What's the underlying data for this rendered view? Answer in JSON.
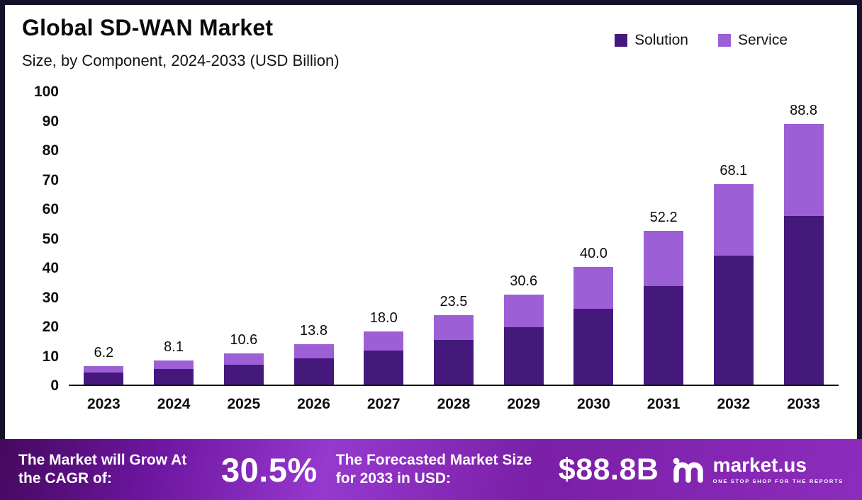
{
  "chart_data": {
    "type": "bar",
    "stacked": true,
    "title": "Global SD-WAN Market",
    "subtitle": "Size, by Component, 2024-2033 (USD Billion)",
    "categories": [
      "2023",
      "2024",
      "2025",
      "2026",
      "2027",
      "2028",
      "2029",
      "2030",
      "2031",
      "2032",
      "2033"
    ],
    "series": [
      {
        "name": "Solution",
        "color": "#45187c",
        "values": [
          4.0,
          5.2,
          6.8,
          8.9,
          11.6,
          15.1,
          19.6,
          25.7,
          33.6,
          43.9,
          57.3
        ]
      },
      {
        "name": "Service",
        "color": "#9c5fd6",
        "values": [
          2.2,
          2.9,
          3.8,
          4.9,
          6.4,
          8.4,
          11.0,
          14.3,
          18.6,
          24.2,
          31.5
        ]
      }
    ],
    "totals": [
      6.2,
      8.1,
      10.6,
      13.8,
      18.0,
      23.5,
      30.6,
      40.0,
      52.2,
      68.1,
      88.8
    ],
    "ylim": [
      0,
      100
    ],
    "yticks": [
      0,
      10,
      20,
      30,
      40,
      50,
      60,
      70,
      80,
      90,
      100
    ],
    "legend_position": "top-right",
    "grid": false
  },
  "header": {
    "title": "Global SD-WAN Market",
    "subtitle": "Size, by Component, 2024-2033 (USD Billion)"
  },
  "legend": {
    "solution_label": "Solution",
    "service_label": "Service"
  },
  "footer": {
    "cagr_label": "The Market will Grow At the CAGR of:",
    "cagr_value": "30.5%",
    "forecast_label": "The Forecasted Market Size for 2033 in USD:",
    "forecast_value": "$88.8B",
    "brand_name": "market.us",
    "brand_tagline": "ONE STOP SHOP FOR THE REPORTS"
  },
  "colors": {
    "solution": "#45187c",
    "service": "#9c5fd6",
    "frame": "#17102b",
    "axis": "#151515"
  }
}
